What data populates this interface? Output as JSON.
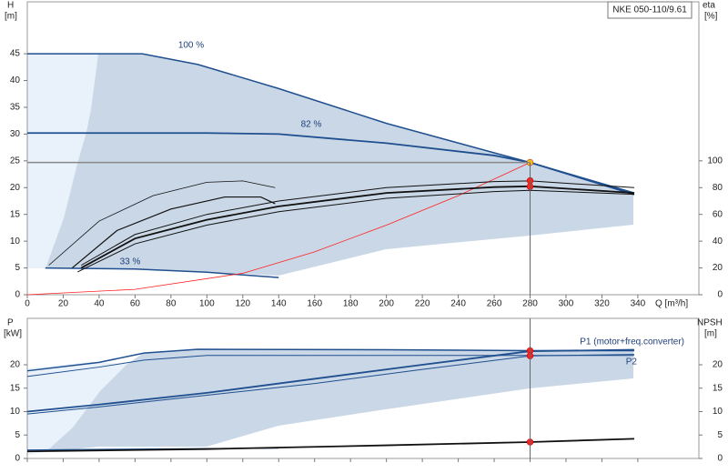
{
  "chart_data": [
    {
      "type": "line",
      "title": "NKE 050-110/9.61",
      "y_label": "H",
      "y_unit": "[m]",
      "y2_label": "eta",
      "y2_unit": "[%]",
      "x_label": "Q [m³/h]",
      "xlim": [
        0,
        374
      ],
      "xticks": [
        0,
        20,
        40,
        60,
        80,
        100,
        120,
        140,
        160,
        180,
        200,
        220,
        240,
        260,
        280,
        300,
        320,
        340
      ],
      "ylim": [
        0,
        54.7
      ],
      "yticks": [
        0,
        5,
        10,
        15,
        20,
        25,
        30,
        35,
        40,
        45
      ],
      "y2lim": [
        0,
        218.8
      ],
      "y2ticks": [
        0,
        20,
        40,
        60,
        80,
        100
      ],
      "grid": false,
      "annotations": [
        "100 %",
        "82 %",
        "33 %"
      ],
      "series": [
        {
          "color": "#1f4f8f",
          "width": 1.5,
          "x": [
            0,
            64,
            95,
            140,
            200,
            260,
            280,
            338
          ],
          "values": [
            45,
            45,
            43,
            38.5,
            32,
            26.5,
            24.7,
            19
          ]
        },
        {
          "color": "#1f4f8f",
          "width": 1.8,
          "x": [
            0,
            100,
            140,
            200,
            260,
            280,
            338
          ],
          "values": [
            30.2,
            30.2,
            30,
            28.3,
            26,
            24.7,
            18.7
          ]
        },
        {
          "color": "#1f4f8f",
          "width": 1.5,
          "x": [
            10,
            60,
            100,
            140
          ],
          "values": [
            5,
            4.8,
            4.2,
            3.2
          ]
        },
        {
          "color": "#ff2020",
          "width": 0.8,
          "x": [
            0,
            60,
            120,
            160,
            200,
            240,
            280
          ],
          "values": [
            0,
            1,
            4,
            8,
            13,
            18.5,
            24.7
          ]
        },
        {
          "color": "#111111",
          "width": 1.8,
          "axis": "y2",
          "x": [
            30,
            60,
            100,
            140,
            200,
            260,
            280,
            338
          ],
          "values": [
            20,
            42,
            56,
            66,
            76,
            80.4,
            81,
            76
          ]
        },
        {
          "color": "#111111",
          "width": 1,
          "axis": "y2",
          "x": [
            30,
            60,
            100,
            140,
            200,
            260,
            280,
            338
          ],
          "values": [
            22,
            45,
            60,
            70,
            80,
            84.5,
            85,
            80
          ]
        },
        {
          "color": "#111111",
          "width": 1,
          "axis": "y2",
          "x": [
            28,
            60,
            100,
            140,
            200,
            260,
            280,
            338
          ],
          "values": [
            17,
            38,
            52,
            62,
            72,
            77,
            78,
            75
          ]
        },
        {
          "color": "#111111",
          "width": 1.2,
          "axis": "y2",
          "x": [
            25,
            50,
            80,
            110,
            130,
            138
          ],
          "values": [
            20,
            48,
            64,
            73,
            73,
            68
          ]
        },
        {
          "color": "#111111",
          "width": 0.8,
          "axis": "y2",
          "x": [
            12,
            40,
            70,
            100,
            120,
            138
          ],
          "values": [
            22,
            55,
            74,
            84,
            85,
            80
          ]
        }
      ],
      "markers": [
        {
          "x": 280,
          "y": 21.3,
          "color": "#ff2020"
        },
        {
          "x": 280,
          "y": 20.2,
          "color": "#ff2020"
        },
        {
          "x": 280,
          "y": 24.7,
          "color": "#f0c020"
        }
      ]
    },
    {
      "type": "line",
      "y_label": "P",
      "y_unit": "[kW]",
      "y2_label": "NPSH",
      "y2_unit": "[m]",
      "xlim": [
        0,
        374
      ],
      "xticks": [
        0,
        20,
        40,
        60,
        80,
        100,
        120,
        140,
        160,
        180,
        200,
        220,
        240,
        260,
        280,
        300,
        320,
        340
      ],
      "ylim": [
        0,
        29.9
      ],
      "yticks": [
        0,
        5,
        10,
        15,
        20
      ],
      "y2lim": [
        0,
        29.9
      ],
      "y2ticks": [
        0,
        5,
        10,
        15,
        20
      ],
      "grid": false,
      "annotations": [
        "P1 (motor+freq.converter)",
        "P2"
      ],
      "series": [
        {
          "color": "#1f4f8f",
          "width": 1.5,
          "x": [
            0,
            40,
            65,
            95,
            200,
            280,
            338
          ],
          "values": [
            18.7,
            20.5,
            22.5,
            23.3,
            23.2,
            23,
            23
          ]
        },
        {
          "color": "#1f4f8f",
          "width": 1,
          "x": [
            0,
            40,
            65,
            100,
            200,
            280,
            338
          ],
          "values": [
            17.5,
            19.5,
            21,
            22,
            22,
            22,
            22
          ]
        },
        {
          "color": "#1f4f8f",
          "width": 1.8,
          "x": [
            0,
            40,
            100,
            160,
            220,
            280,
            338
          ],
          "values": [
            10,
            11.5,
            14,
            17,
            20,
            22.9,
            23.2
          ]
        },
        {
          "color": "#1f4f8f",
          "width": 1,
          "x": [
            0,
            40,
            100,
            160,
            220,
            280,
            338
          ],
          "values": [
            9.5,
            11,
            13.5,
            16,
            19,
            21.9,
            22.2
          ]
        },
        {
          "color": "#1f4f8f",
          "width": 1.2,
          "x": [
            0,
            60,
            140
          ],
          "values": [
            1.8,
            2,
            2.2
          ]
        },
        {
          "color": "#111111",
          "width": 1.8,
          "axis": "y2",
          "x": [
            0,
            100,
            200,
            280,
            338
          ],
          "values": [
            1.5,
            2,
            2.8,
            3.5,
            4.2
          ]
        }
      ],
      "markers": [
        {
          "x": 280,
          "y": 23,
          "color": "#ff2020"
        },
        {
          "x": 280,
          "y": 21.9,
          "color": "#ff2020"
        },
        {
          "x": 280,
          "y": 3.5,
          "color": "#ff2020",
          "axis": "y2"
        }
      ]
    }
  ]
}
